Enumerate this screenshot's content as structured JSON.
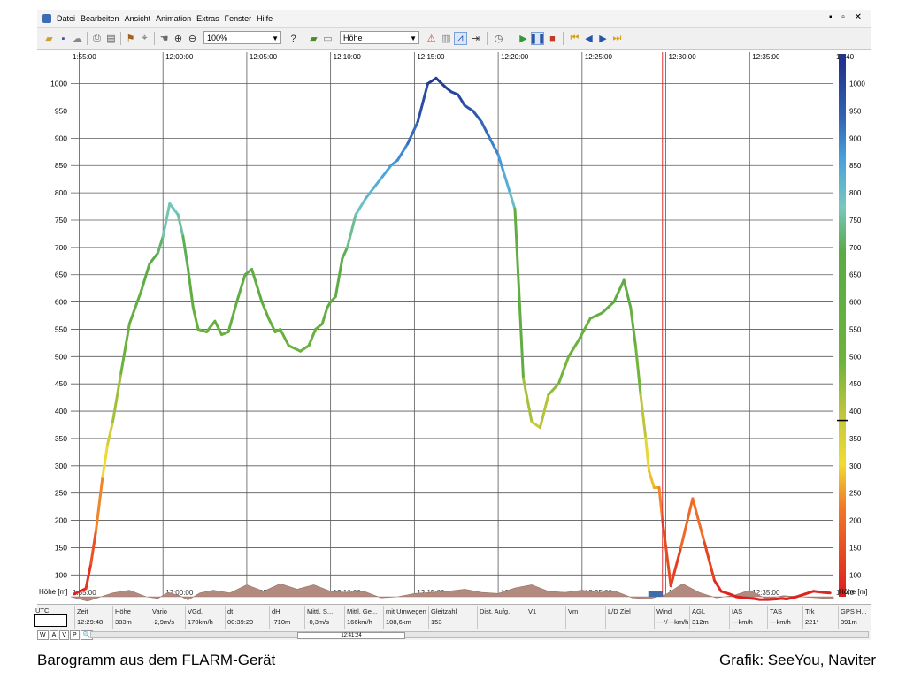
{
  "menu": [
    "Datei",
    "Bearbeiten",
    "Ansicht",
    "Animation",
    "Extras",
    "Fenster",
    "Hilfe"
  ],
  "window_controls": "▪ ▫ ✕",
  "toolbar": {
    "zoom": "100%",
    "field": "Höhe",
    "icons": [
      "open-folder-icon",
      "save-icon",
      "cloud-icon",
      "print-icon",
      "print-preview-icon",
      "flag-icon",
      "compass-icon",
      "hand-icon",
      "zoom-in-icon",
      "zoom-out-icon",
      "help-icon",
      "open-file-icon",
      "document-icon",
      "alarm-icon",
      "color-scale-icon",
      "arrow-right-icon",
      "clock-icon",
      "play-icon",
      "pause-icon",
      "stop-icon",
      "skip-start-icon",
      "prev-icon",
      "next-icon",
      "skip-end-icon"
    ]
  },
  "chart_data": {
    "type": "line",
    "title": "",
    "xlabel": "",
    "ylabel": "Höhe [m]",
    "y_axis_label": "Höhe [m]",
    "color_axis_label": "Höhe [m]",
    "x_ticks": [
      "11:55:00",
      "12:00:00",
      "12:05:00",
      "12:10:00",
      "12:15:00",
      "12:20:00",
      "12:25:00",
      "12:30:00",
      "12:35:00",
      "12:40:00"
    ],
    "x_tick_label_first": "1:55:00",
    "x_tick_label_last": "12:40",
    "x_range_minutes": [
      -5.5,
      40.0
    ],
    "ylim": [
      60,
      1035
    ],
    "y_ticks": [
      100,
      150,
      200,
      250,
      300,
      350,
      400,
      450,
      500,
      550,
      600,
      650,
      700,
      750,
      800,
      850,
      900,
      950,
      1000
    ],
    "colorbar_ticks": [
      100,
      150,
      200,
      250,
      300,
      350,
      400,
      450,
      500,
      550,
      600,
      650,
      700,
      750,
      800,
      850,
      900,
      950,
      1000
    ],
    "colorbar_marker": 383,
    "cursor_time": "12:29:48",
    "grid": true,
    "series": [
      {
        "x": [
          -5.3,
          -4.6,
          -4.3,
          -4.0,
          -3.6,
          -3.3,
          -3.0,
          -2.5,
          -2.0,
          -1.3,
          -0.8,
          -0.3,
          0.0,
          0.4,
          0.9,
          1.2,
          1.5,
          1.8,
          2.1,
          2.6,
          3.1,
          3.5,
          3.9,
          4.4,
          4.9,
          5.3,
          5.9,
          6.3,
          6.7,
          7.0,
          7.5,
          8.2,
          8.7,
          9.1,
          9.5,
          9.8,
          10.0,
          10.3,
          10.7,
          11.0,
          11.5,
          12.1,
          12.6,
          13.1,
          13.6,
          14.0,
          14.6,
          15.2,
          15.8,
          16.3,
          16.8,
          17.2,
          17.6,
          18.0,
          18.5,
          19.0,
          19.5,
          20.0,
          20.3,
          20.7,
          21.0,
          21.5,
          22.0,
          22.5,
          23.0,
          23.6,
          24.2,
          24.8,
          25.5,
          26.2,
          26.9,
          27.5,
          27.9,
          28.2,
          28.5,
          28.8,
          29.0,
          29.3,
          29.6,
          29.8,
          30.3,
          30.9,
          31.6,
          32.3,
          32.9,
          33.3,
          33.8,
          34.2,
          34.7,
          35.2,
          35.6,
          36.1,
          36.6,
          36.9,
          37.2,
          37.8,
          38.3,
          38.8,
          39.4,
          39.8
        ],
        "y": [
          65,
          75,
          120,
          180,
          280,
          340,
          380,
          470,
          560,
          620,
          670,
          690,
          720,
          780,
          760,
          720,
          660,
          590,
          550,
          545,
          565,
          540,
          545,
          600,
          650,
          660,
          600,
          570,
          545,
          550,
          520,
          510,
          520,
          550,
          560,
          590,
          600,
          610,
          680,
          700,
          760,
          790,
          810,
          830,
          850,
          860,
          890,
          930,
          1000,
          1010,
          995,
          985,
          980,
          960,
          950,
          930,
          900,
          870,
          840,
          800,
          770,
          460,
          380,
          370,
          430,
          450,
          500,
          530,
          570,
          580,
          600,
          640,
          590,
          520,
          430,
          350,
          290,
          260,
          260,
          200,
          80,
          150,
          240,
          160,
          90,
          70,
          65,
          60,
          58,
          57,
          55,
          55,
          56,
          57,
          56,
          60,
          65,
          70,
          68,
          67
        ]
      }
    ],
    "ground_profile_units": "m AGL reference (brown terrain band)",
    "ground_profile": {
      "x": [
        -5.5,
        -4.5,
        -3.0,
        -2.0,
        -1.0,
        -0.3,
        0.3,
        1.0,
        1.5,
        2.2,
        3.0,
        4.0,
        5.0,
        6.0,
        7.0,
        8.0,
        9.0,
        10.0,
        11.0,
        12.0,
        13.0,
        14.0,
        15.0,
        16.0,
        17.0,
        18.0,
        19.0,
        20.0,
        21.0,
        22.0,
        23.0,
        24.0,
        25.0,
        26.0,
        27.0,
        28.0,
        29.0,
        30.0,
        31.0,
        32.0,
        33.0,
        34.0,
        35.0,
        36.0,
        37.0,
        38.0,
        39.0,
        40.0
      ],
      "y": [
        88,
        80,
        95,
        100,
        88,
        85,
        96,
        90,
        82,
        95,
        100,
        95,
        110,
        98,
        112,
        102,
        110,
        98,
        96,
        98,
        86,
        88,
        94,
        96,
        98,
        102,
        96,
        94,
        104,
        110,
        98,
        96,
        100,
        96,
        98,
        86,
        84,
        92,
        112,
        96,
        86,
        90,
        100,
        84,
        90,
        88,
        86,
        84
      ]
    }
  },
  "status": {
    "utc_label": "UTC",
    "headers": [
      "Zeit",
      "Höhe",
      "Vario",
      "VGd.",
      "dt",
      "dH",
      "Mittl. S...",
      "Mittl. Ge...",
      "mit Umwegen",
      "Gleitzahl",
      "Dist. Aufg.",
      "V1",
      "Vm",
      "L/D Ziel",
      "Wind",
      "AGL",
      "IAS",
      "TAS",
      "Trk",
      "GPS H..."
    ],
    "values": [
      "12:29:48",
      "383m",
      "-2,9m/s",
      "170km/h",
      "00:39:20",
      "-710m",
      "-0,3m/s",
      "166km/h",
      "108,6km",
      "153",
      "",
      "",
      "",
      "",
      "---°/---km/h",
      "312m",
      "---km/h",
      "---km/h",
      "221°",
      "391m"
    ],
    "tabs": [
      "W",
      "A",
      "V",
      "P",
      "🔍"
    ],
    "scroll_label": "12:41:24"
  },
  "captions": {
    "left": "Barogramm aus dem FLARM-Gerät",
    "right": "Grafik: SeeYou, Naviter"
  }
}
